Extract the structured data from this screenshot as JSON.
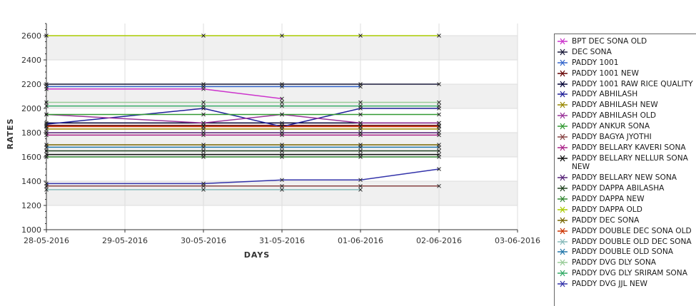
{
  "chart_data": {
    "type": "line",
    "title": "",
    "xlabel": "DAYS",
    "ylabel": "RATES",
    "ylim": [
      1000,
      2700
    ],
    "y_ticks": [
      1000,
      1200,
      1400,
      1600,
      1800,
      2000,
      2200,
      2400,
      2600
    ],
    "x_ticks": [
      "28-05-2016",
      "29-05-2016",
      "30-05-2016",
      "31-05-2016",
      "01-06-2016",
      "02-06-2016",
      "03-06-2016"
    ],
    "grid": true,
    "legend_position": "right",
    "series": [
      {
        "name": "BPT DEC SONA OLD",
        "color": "#cc33cc",
        "x": [
          "28-05-2016",
          "30-05-2016",
          "31-05-2016"
        ],
        "y": [
          2160,
          2160,
          2080
        ]
      },
      {
        "name": "DEC SONA",
        "color": "#1a1a3a",
        "x": [
          "28-05-2016",
          "30-05-2016",
          "31-05-2016",
          "01-06-2016",
          "02-06-2016"
        ],
        "y": [
          2200,
          2200,
          2200,
          2200,
          2200
        ]
      },
      {
        "name": "PADDY 1001",
        "color": "#3366cc",
        "x": [
          "28-05-2016",
          "30-05-2016",
          "31-05-2016",
          "01-06-2016"
        ],
        "y": [
          2180,
          2180,
          2180,
          2180
        ]
      },
      {
        "name": "PADDY 1001 NEW",
        "color": "#660000",
        "x": [
          "28-05-2016",
          "30-05-2016",
          "31-05-2016",
          "01-06-2016",
          "02-06-2016"
        ],
        "y": [
          1860,
          1860,
          1860,
          1860,
          1860
        ]
      },
      {
        "name": "PADDY 1001 RAW RICE QUALITY",
        "color": "#000033",
        "x": [
          "28-05-2016",
          "30-05-2016",
          "31-05-2016",
          "01-06-2016",
          "02-06-2016"
        ],
        "y": [
          1880,
          1880,
          1880,
          1880,
          1880
        ]
      },
      {
        "name": "PADDY ABHILASH",
        "color": "#1f1f99",
        "x": [
          "28-05-2016",
          "30-05-2016",
          "31-05-2016",
          "01-06-2016",
          "02-06-2016"
        ],
        "y": [
          1870,
          2000,
          1850,
          2000,
          2000
        ]
      },
      {
        "name": "PADDY ABHILASH NEW",
        "color": "#998800",
        "x": [
          "28-05-2016",
          "30-05-2016",
          "31-05-2016",
          "01-06-2016",
          "02-06-2016"
        ],
        "y": [
          1830,
          1830,
          1830,
          1830,
          1830
        ]
      },
      {
        "name": "PADDY ABHILASH OLD",
        "color": "#993399",
        "x": [
          "28-05-2016",
          "30-05-2016",
          "31-05-2016",
          "01-06-2016",
          "02-06-2016"
        ],
        "y": [
          1950,
          1880,
          1950,
          1880,
          1880
        ]
      },
      {
        "name": "PADDY ANKUR SONA",
        "color": "#339933",
        "x": [
          "28-05-2016",
          "30-05-2016",
          "31-05-2016",
          "01-06-2016",
          "02-06-2016"
        ],
        "y": [
          1950,
          1950,
          1950,
          1950,
          1950
        ]
      },
      {
        "name": "PADDY BAGYA JYOTHI",
        "color": "#884444",
        "x": [
          "28-05-2016",
          "30-05-2016",
          "31-05-2016",
          "01-06-2016",
          "02-06-2016"
        ],
        "y": [
          1360,
          1360,
          1360,
          1360,
          1360
        ]
      },
      {
        "name": "PADDY BELLARY KAVERI SONA",
        "color": "#aa2288",
        "x": [
          "28-05-2016",
          "30-05-2016",
          "31-05-2016",
          "01-06-2016",
          "02-06-2016"
        ],
        "y": [
          1780,
          1780,
          1780,
          1780,
          1780
        ]
      },
      {
        "name": "PADDY BELLARY NELLUR SONA NEW",
        "color": "#111111",
        "x": [
          "28-05-2016",
          "30-05-2016",
          "31-05-2016",
          "01-06-2016",
          "02-06-2016"
        ],
        "y": [
          1620,
          1620,
          1620,
          1620,
          1620
        ]
      },
      {
        "name": "PADDY BELLARY NEW SONA",
        "color": "#552277",
        "x": [
          "28-05-2016",
          "30-05-2016",
          "31-05-2016",
          "01-06-2016",
          "02-06-2016"
        ],
        "y": [
          1800,
          1800,
          1800,
          1800,
          1800
        ]
      },
      {
        "name": "PADDY DAPPA ABILASHA",
        "color": "#224422",
        "x": [
          "28-05-2016",
          "30-05-2016",
          "31-05-2016",
          "01-06-2016",
          "02-06-2016"
        ],
        "y": [
          1650,
          1650,
          1650,
          1650,
          1650
        ]
      },
      {
        "name": "PADDY DAPPA NEW",
        "color": "#338833",
        "x": [
          "28-05-2016",
          "30-05-2016",
          "31-05-2016",
          "01-06-2016",
          "02-06-2016"
        ],
        "y": [
          1600,
          1600,
          1600,
          1600,
          1600
        ]
      },
      {
        "name": "PADDY DAPPA OLD",
        "color": "#aacc00",
        "x": [
          "28-05-2016",
          "30-05-2016",
          "31-05-2016",
          "01-06-2016",
          "02-06-2016"
        ],
        "y": [
          2600,
          2600,
          2600,
          2600,
          2600
        ]
      },
      {
        "name": "PADDY DEC SONA",
        "color": "#776600",
        "x": [
          "28-05-2016",
          "30-05-2016",
          "31-05-2016",
          "01-06-2016",
          "02-06-2016"
        ],
        "y": [
          1700,
          1700,
          1700,
          1700,
          1700
        ]
      },
      {
        "name": "PADDY DOUBLE DEC SONA OLD",
        "color": "#cc3300",
        "x": [
          "28-05-2016",
          "30-05-2016",
          "31-05-2016",
          "01-06-2016",
          "02-06-2016"
        ],
        "y": [
          1850,
          1850,
          1850,
          1850,
          1850
        ]
      },
      {
        "name": "PADDY DOUBLE OLD DEC SONA",
        "color": "#88bbbb",
        "x": [
          "28-05-2016",
          "30-05-2016",
          "31-05-2016",
          "01-06-2016"
        ],
        "y": [
          1330,
          1330,
          1330,
          1330
        ]
      },
      {
        "name": "PADDY DOUBLE OLD SONA",
        "color": "#2277aa",
        "x": [
          "28-05-2016",
          "30-05-2016",
          "31-05-2016",
          "01-06-2016",
          "02-06-2016"
        ],
        "y": [
          1680,
          1680,
          1680,
          1680,
          1680
        ]
      },
      {
        "name": "PADDY DVG DLY SONA",
        "color": "#99cc99",
        "x": [
          "28-05-2016",
          "30-05-2016",
          "31-05-2016",
          "01-06-2016",
          "02-06-2016"
        ],
        "y": [
          2050,
          2050,
          2050,
          2050,
          2050
        ]
      },
      {
        "name": "PADDY DVG DLY SRIRAM SONA",
        "color": "#33aa66",
        "x": [
          "28-05-2016",
          "30-05-2016",
          "31-05-2016",
          "01-06-2016",
          "02-06-2016"
        ],
        "y": [
          2020,
          2020,
          2020,
          2020,
          2020
        ]
      },
      {
        "name": "PADDY DVG JJL NEW",
        "color": "#3333aa",
        "x": [
          "28-05-2016",
          "30-05-2016",
          "31-05-2016",
          "01-06-2016",
          "02-06-2016"
        ],
        "y": [
          1380,
          1380,
          1410,
          1410,
          1500
        ]
      }
    ]
  }
}
